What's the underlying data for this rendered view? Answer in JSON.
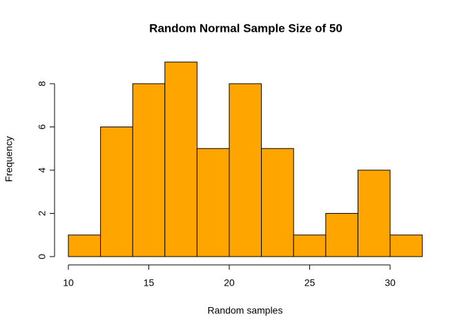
{
  "chart_data": {
    "type": "histogram",
    "title": "Random Normal Sample Size of 50",
    "x_label": "Random samples",
    "y_label": "Frequency",
    "bins": [
      10,
      12,
      14,
      16,
      18,
      20,
      22,
      24,
      26,
      28,
      30,
      32
    ],
    "values": [
      1,
      6,
      8,
      9,
      5,
      8,
      5,
      1,
      2,
      4,
      1
    ],
    "color": "#ffa500",
    "xlim": [
      10,
      32
    ],
    "xticks": [
      10,
      15,
      20,
      25,
      30
    ],
    "ylim": [
      0,
      9
    ],
    "yticks": [
      0,
      2,
      4,
      6,
      8
    ]
  }
}
